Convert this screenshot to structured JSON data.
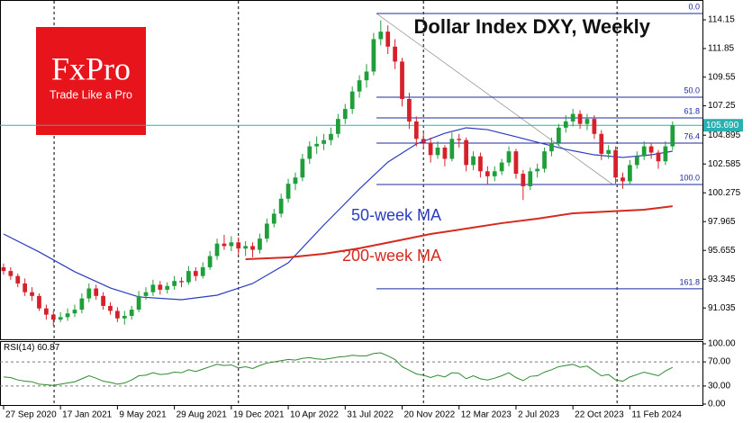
{
  "logo": {
    "brand": "FxPro",
    "tagline": "Trade Like a Pro"
  },
  "chart_data": [
    {
      "type": "candlestick",
      "title": "Dollar Index DXY, Weekly",
      "up_color": "#1f9e3a",
      "down_color": "#d6202a",
      "xlim": [
        -0.5,
        98.2
      ],
      "ylim": [
        88.45,
        115.74
      ],
      "yticks": [
        114.15,
        111.85,
        109.55,
        107.25,
        104.895,
        102.585,
        100.275,
        97.965,
        95.655,
        93.345,
        91.035
      ],
      "xticks": [
        {
          "value": 0,
          "label": "27 Sep 2020"
        },
        {
          "value": 8,
          "label": "17 Jan 2021"
        },
        {
          "value": 16,
          "label": "9 May 2021"
        },
        {
          "value": 24,
          "label": "29 Aug 2021"
        },
        {
          "value": 32,
          "label": "19 Dec 2021"
        },
        {
          "value": 40,
          "label": "10 Apr 2022"
        },
        {
          "value": 48,
          "label": "31 Jul 2022"
        },
        {
          "value": 56,
          "label": "20 Nov 2022"
        },
        {
          "value": 64,
          "label": "12 Mar 2023"
        },
        {
          "value": 72,
          "label": "2 Jul 2023"
        },
        {
          "value": 80,
          "label": "22 Oct 2023"
        },
        {
          "value": 88,
          "label": "11 Feb 2024"
        }
      ],
      "vgrid_x": [
        7.1,
        33,
        59,
        86.2
      ],
      "candles": [
        [
          94.3,
          94.6,
          93.7,
          94.0
        ],
        [
          94.0,
          94.3,
          93.3,
          93.6
        ],
        [
          93.6,
          93.8,
          92.7,
          93.0
        ],
        [
          93.0,
          93.4,
          92.0,
          92.3
        ],
        [
          92.3,
          92.7,
          91.6,
          92.0
        ],
        [
          92.0,
          92.2,
          90.8,
          91.0
        ],
        [
          91.0,
          91.3,
          90.1,
          90.5
        ],
        [
          90.5,
          90.8,
          89.6,
          90.1
        ],
        [
          90.1,
          90.7,
          89.9,
          90.3
        ],
        [
          90.3,
          91.0,
          90.0,
          90.6
        ],
        [
          90.6,
          91.3,
          90.3,
          90.9
        ],
        [
          90.9,
          92.2,
          90.6,
          91.8
        ],
        [
          91.8,
          93.0,
          91.5,
          92.6
        ],
        [
          92.6,
          92.9,
          91.7,
          92.0
        ],
        [
          92.0,
          92.3,
          90.9,
          91.2
        ],
        [
          91.2,
          91.5,
          90.5,
          90.8
        ],
        [
          90.8,
          91.1,
          89.9,
          90.2
        ],
        [
          90.2,
          90.8,
          89.7,
          90.4
        ],
        [
          90.4,
          91.2,
          90.1,
          90.9
        ],
        [
          90.9,
          92.4,
          90.7,
          92.0
        ],
        [
          92.0,
          92.7,
          91.7,
          92.3
        ],
        [
          92.3,
          93.3,
          92.0,
          92.9
        ],
        [
          92.9,
          93.2,
          92.1,
          92.5
        ],
        [
          92.5,
          93.1,
          92.2,
          92.8
        ],
        [
          92.8,
          93.6,
          92.5,
          93.2
        ],
        [
          93.2,
          93.5,
          92.7,
          93.1
        ],
        [
          93.1,
          94.4,
          92.9,
          94.0
        ],
        [
          94.0,
          94.3,
          93.2,
          93.6
        ],
        [
          93.6,
          94.7,
          93.4,
          94.3
        ],
        [
          94.3,
          95.6,
          94.1,
          95.2
        ],
        [
          95.2,
          96.6,
          94.9,
          96.2
        ],
        [
          96.2,
          96.9,
          95.7,
          96.0
        ],
        [
          96.0,
          96.8,
          95.6,
          96.3
        ],
        [
          96.3,
          96.7,
          95.3,
          95.8
        ],
        [
          95.8,
          96.4,
          95.2,
          96.0
        ],
        [
          96.0,
          96.3,
          95.1,
          95.7
        ],
        [
          95.7,
          97.0,
          95.4,
          96.6
        ],
        [
          96.6,
          98.2,
          96.3,
          97.8
        ],
        [
          97.8,
          99.0,
          97.5,
          98.6
        ],
        [
          98.6,
          100.2,
          98.3,
          99.8
        ],
        [
          99.8,
          101.4,
          99.5,
          101.0
        ],
        [
          101.0,
          101.9,
          100.5,
          101.5
        ],
        [
          101.5,
          103.4,
          101.2,
          103.0
        ],
        [
          103.0,
          104.4,
          102.6,
          104.0
        ],
        [
          104.0,
          104.8,
          103.4,
          104.2
        ],
        [
          104.2,
          105.0,
          103.7,
          104.5
        ],
        [
          104.5,
          105.5,
          104.1,
          105.0
        ],
        [
          105.0,
          106.6,
          104.7,
          106.2
        ],
        [
          106.2,
          107.4,
          105.8,
          107.0
        ],
        [
          107.0,
          108.8,
          106.6,
          108.4
        ],
        [
          108.4,
          109.7,
          107.9,
          109.3
        ],
        [
          109.3,
          110.6,
          108.7,
          110.0
        ],
        [
          110.0,
          113.1,
          109.7,
          112.6
        ],
        [
          112.6,
          114.1,
          112.1,
          113.2
        ],
        [
          113.2,
          113.7,
          111.4,
          112.0
        ],
        [
          112.0,
          112.6,
          110.2,
          110.8
        ],
        [
          110.8,
          111.1,
          107.2,
          107.8
        ],
        [
          107.8,
          108.3,
          105.4,
          106.0
        ],
        [
          106.0,
          106.4,
          104.0,
          104.6
        ],
        [
          104.6,
          105.2,
          103.8,
          104.3
        ],
        [
          104.3,
          104.7,
          102.7,
          103.3
        ],
        [
          103.3,
          104.4,
          103.0,
          103.9
        ],
        [
          103.9,
          104.1,
          102.4,
          103.0
        ],
        [
          103.0,
          105.1,
          102.8,
          104.6
        ],
        [
          104.6,
          105.0,
          103.9,
          104.5
        ],
        [
          104.5,
          104.7,
          102.0,
          102.5
        ],
        [
          102.5,
          103.6,
          102.1,
          103.2
        ],
        [
          103.2,
          103.5,
          101.5,
          102.0
        ],
        [
          102.0,
          102.4,
          100.9,
          101.6
        ],
        [
          101.6,
          102.4,
          101.2,
          102.0
        ],
        [
          102.0,
          103.0,
          101.7,
          102.7
        ],
        [
          102.7,
          104.0,
          102.4,
          103.6
        ],
        [
          103.6,
          103.8,
          101.4,
          101.8
        ],
        [
          101.8,
          102.1,
          99.7,
          100.8
        ],
        [
          100.8,
          102.3,
          100.5,
          102.0
        ],
        [
          102.0,
          102.6,
          101.5,
          102.2
        ],
        [
          102.2,
          103.9,
          101.9,
          103.6
        ],
        [
          103.6,
          104.7,
          103.2,
          104.3
        ],
        [
          104.3,
          105.8,
          104.0,
          105.5
        ],
        [
          105.5,
          106.5,
          105.1,
          106.0
        ],
        [
          106.0,
          107.0,
          105.6,
          106.6
        ],
        [
          106.6,
          106.9,
          105.4,
          105.8
        ],
        [
          105.8,
          106.6,
          105.3,
          106.2
        ],
        [
          106.2,
          106.5,
          104.6,
          105.0
        ],
        [
          105.0,
          105.3,
          102.9,
          103.4
        ],
        [
          103.4,
          104.1,
          103.0,
          103.7
        ],
        [
          103.7,
          104.0,
          101.0,
          101.5
        ],
        [
          101.5,
          101.9,
          100.6,
          101.2
        ],
        [
          101.2,
          102.9,
          100.9,
          102.5
        ],
        [
          102.5,
          103.6,
          102.2,
          103.2
        ],
        [
          103.2,
          104.4,
          102.9,
          104.0
        ],
        [
          104.0,
          104.3,
          103.0,
          103.5
        ],
        [
          103.5,
          103.7,
          102.2,
          102.8
        ],
        [
          102.8,
          104.4,
          102.5,
          104.0
        ],
        [
          104.0,
          106.0,
          103.7,
          105.69
        ]
      ],
      "series": [
        {
          "name": "50-week MA",
          "color": "#2b3bbf",
          "x": [
            0,
            5,
            10,
            15,
            19,
            25,
            30,
            35,
            40,
            45,
            50,
            54,
            58,
            62,
            65,
            68,
            72,
            75,
            79,
            83,
            87,
            91,
            94
          ],
          "values": [
            96.97,
            95.53,
            93.94,
            92.64,
            91.92,
            91.7,
            92.06,
            93.0,
            94.66,
            97.69,
            100.58,
            102.74,
            104.19,
            105.05,
            105.49,
            105.34,
            104.77,
            104.33,
            103.76,
            103.32,
            103.11,
            103.32,
            103.61
          ]
        },
        {
          "name": "200-week MA",
          "color": "#d42a20",
          "x": [
            34,
            40,
            45,
            50,
            55,
            60,
            65,
            70,
            75,
            80,
            85,
            90,
            94
          ],
          "values": [
            94.95,
            95.09,
            95.38,
            95.82,
            96.39,
            96.97,
            97.4,
            97.84,
            98.2,
            98.63,
            98.77,
            98.92,
            99.2
          ]
        }
      ],
      "fib": {
        "color": "#1c2a9c",
        "x": [
          52.4,
          85.6
        ],
        "levels": [
          {
            "value": 114.66,
            "label": "0.0"
          },
          {
            "value": 107.94,
            "label": "50.0"
          },
          {
            "value": 106.28,
            "label": "61.8"
          },
          {
            "value": 104.26,
            "label": "76.4"
          },
          {
            "value": 100.94,
            "label": "100.0"
          },
          {
            "value": 92.57,
            "label": "161.8"
          }
        ]
      },
      "last_price": {
        "value": 105.69,
        "label": "105.690",
        "color": "#2ab0b0"
      }
    },
    {
      "type": "line",
      "title": "RSI(14)",
      "color": "#2e8b2e",
      "ylim": [
        0,
        100
      ],
      "yticks": [
        {
          "value": 100,
          "label": "100.00"
        },
        {
          "value": 70,
          "label": "70.00"
        },
        {
          "value": 30,
          "label": "30.00"
        },
        {
          "value": 0,
          "label": "0.00"
        }
      ],
      "values": [
        45,
        44,
        40,
        38,
        37,
        33,
        32,
        31,
        33,
        35,
        37,
        42,
        47,
        43,
        38,
        36,
        33,
        35,
        40,
        47,
        48,
        52,
        49,
        50,
        53,
        52,
        57,
        54,
        58,
        62,
        66,
        64,
        65,
        60,
        62,
        59,
        64,
        68,
        70,
        72,
        74,
        73,
        76,
        77,
        75,
        74,
        76,
        78,
        79,
        81,
        80,
        80,
        84,
        85,
        80,
        74,
        62,
        56,
        50,
        48,
        44,
        48,
        45,
        52,
        51,
        42,
        47,
        42,
        40,
        43,
        47,
        52,
        44,
        39,
        46,
        47,
        53,
        57,
        62,
        64,
        66,
        61,
        63,
        55,
        47,
        49,
        40,
        38,
        45,
        49,
        53,
        50,
        47,
        55,
        60.87
      ]
    }
  ]
}
